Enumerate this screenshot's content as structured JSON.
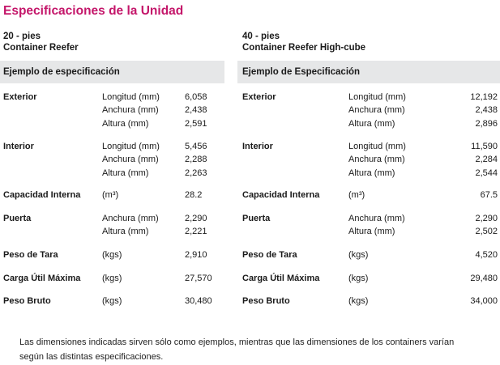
{
  "page_title": "Especificaciones de la Unidad",
  "columns": [
    {
      "size": "20 - pies",
      "type": "Container Reefer",
      "band": "Ejemplo de especificación",
      "rows": [
        {
          "label": "Exterior",
          "lines": [
            {
              "unit": "Longitud (mm)",
              "value": "6,058"
            },
            {
              "unit": "Anchura (mm)",
              "value": "2,438"
            },
            {
              "unit": "Altura (mm)",
              "value": "2,591"
            }
          ]
        },
        {
          "label": "Interior",
          "lines": [
            {
              "unit": "Longitud (mm)",
              "value": "5,456"
            },
            {
              "unit": "Anchura (mm)",
              "value": "2,288"
            },
            {
              "unit": "Altura (mm)",
              "value": "2,263"
            }
          ]
        },
        {
          "label": "Capacidad Interna",
          "lines": [
            {
              "unit": "(m³)",
              "value": "28.2"
            }
          ]
        },
        {
          "label": "Puerta",
          "lines": [
            {
              "unit": "Anchura (mm)",
              "value": "2,290"
            },
            {
              "unit": "Altura (mm)",
              "value": "2,221"
            }
          ]
        },
        {
          "label": "Peso de Tara",
          "lines": [
            {
              "unit": "(kgs)",
              "value": "2,910"
            }
          ]
        },
        {
          "label": "Carga Útil Máxima",
          "lines": [
            {
              "unit": "(kgs)",
              "value": "27,570"
            }
          ]
        },
        {
          "label": "Peso Bruto",
          "lines": [
            {
              "unit": "(kgs)",
              "value": "30,480"
            }
          ]
        }
      ]
    },
    {
      "size": "40 - pies",
      "type": "Container Reefer High-cube",
      "band": "Ejemplo de Especificación",
      "rows": [
        {
          "label": "Exterior",
          "lines": [
            {
              "unit": "Longitud (mm)",
              "value": "12,192"
            },
            {
              "unit": "Anchura (mm)",
              "value": "2,438"
            },
            {
              "unit": "Altura (mm)",
              "value": "2,896"
            }
          ]
        },
        {
          "label": "Interior",
          "lines": [
            {
              "unit": "Longitud (mm)",
              "value": "11,590"
            },
            {
              "unit": "Anchura (mm)",
              "value": "2,284"
            },
            {
              "unit": "Altura (mm)",
              "value": "2,544"
            }
          ]
        },
        {
          "label": "Capacidad Interna",
          "lines": [
            {
              "unit": "(m³)",
              "value": "67.5"
            }
          ]
        },
        {
          "label": "Puerta",
          "lines": [
            {
              "unit": "Anchura (mm)",
              "value": "2,290"
            },
            {
              "unit": "Altura (mm)",
              "value": "2,502"
            }
          ]
        },
        {
          "label": "Peso de Tara",
          "lines": [
            {
              "unit": "(kgs)",
              "value": "4,520"
            }
          ]
        },
        {
          "label": "Carga Útil Máxima",
          "lines": [
            {
              "unit": "(kgs)",
              "value": "29,480"
            }
          ]
        },
        {
          "label": "Peso Bruto",
          "lines": [
            {
              "unit": "(kgs)",
              "value": "34,000"
            }
          ]
        }
      ]
    }
  ],
  "note": "Las dimensiones indicadas sirven sólo como ejemplos, mientras que las dimensiones de los containers varían según las distintas especificaciones.",
  "colors": {
    "title": "#c4166a",
    "band": "#e6e7e8"
  }
}
